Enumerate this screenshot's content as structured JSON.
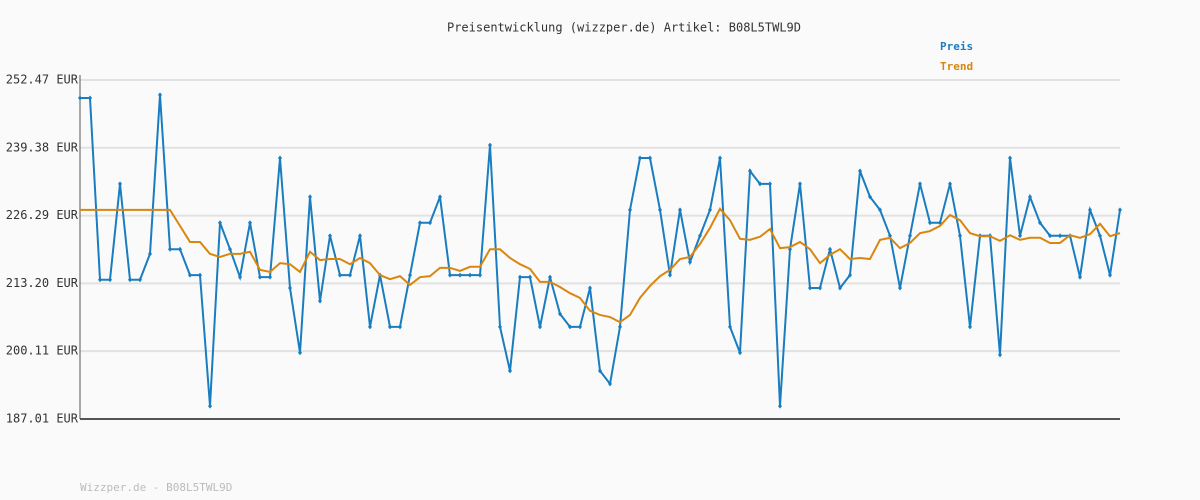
{
  "chart_data": {
    "type": "line",
    "title": "Preisentwicklung (wizzper.de) Artikel: B08L5TWL9D",
    "footer": "Wizzper.de - B08L5TWL9D",
    "ylim": [
      187.01,
      252.47
    ],
    "yticks": [
      {
        "value": 187.01,
        "label": "187.01 EUR"
      },
      {
        "value": 200.11,
        "label": "200.11 EUR"
      },
      {
        "value": 213.2,
        "label": "213.20 EUR"
      },
      {
        "value": 226.29,
        "label": "226.29 EUR"
      },
      {
        "value": 239.38,
        "label": "239.38 EUR"
      },
      {
        "value": 252.47,
        "label": "252.47 EUR"
      }
    ],
    "grid": true,
    "legend": "top-right",
    "series": [
      {
        "name": "Preis",
        "color": "#1a7dbf",
        "values": [
          249.0,
          249.0,
          213.9,
          213.9,
          232.4,
          213.9,
          213.9,
          218.9,
          249.6,
          219.8,
          219.8,
          214.8,
          214.8,
          189.5,
          224.9,
          219.8,
          214.4,
          224.9,
          214.4,
          214.4,
          237.4,
          212.3,
          199.8,
          229.9,
          209.8,
          222.4,
          214.8,
          214.8,
          222.4,
          204.8,
          214.8,
          204.8,
          204.8,
          214.8,
          224.9,
          224.9,
          229.9,
          214.8,
          214.8,
          214.8,
          214.8,
          239.9,
          204.8,
          196.3,
          214.4,
          214.4,
          204.8,
          214.4,
          207.3,
          204.8,
          204.8,
          212.3,
          196.3,
          193.8,
          204.8,
          227.4,
          237.4,
          237.4,
          227.4,
          214.8,
          227.4,
          217.3,
          222.4,
          227.4,
          237.4,
          204.8,
          199.8,
          234.9,
          232.4,
          232.4,
          189.5,
          219.8,
          232.4,
          212.3,
          212.3,
          219.8,
          212.3,
          214.8,
          234.9,
          229.9,
          227.4,
          222.4,
          212.3,
          222.4,
          232.4,
          224.9,
          224.9,
          232.4,
          222.4,
          204.8,
          222.4,
          222.4,
          199.4,
          237.4,
          222.4,
          229.9,
          224.9,
          222.4,
          222.4,
          222.4,
          214.4,
          227.4,
          222.4,
          214.8,
          227.4
        ]
      },
      {
        "name": "Trend",
        "color": "#d9860f",
        "values": [
          227.4,
          227.4,
          227.4,
          227.4,
          227.4,
          227.4,
          227.4,
          227.4,
          227.4,
          227.4,
          224.3,
          221.2,
          221.2,
          218.9,
          218.3,
          218.9,
          218.9,
          219.3,
          215.8,
          215.4,
          217.1,
          216.9,
          215.4,
          219.3,
          217.7,
          217.9,
          217.9,
          216.9,
          218.1,
          217.1,
          214.8,
          214.0,
          214.6,
          212.9,
          214.4,
          214.6,
          216.2,
          216.2,
          215.6,
          216.4,
          216.4,
          219.8,
          219.8,
          218.1,
          216.9,
          216.0,
          213.5,
          213.5,
          212.5,
          211.3,
          210.4,
          207.9,
          207.1,
          206.7,
          205.7,
          207.1,
          210.4,
          212.7,
          214.6,
          215.8,
          217.9,
          218.3,
          220.8,
          223.9,
          227.6,
          225.4,
          221.8,
          221.6,
          222.2,
          223.7,
          220.0,
          220.2,
          221.2,
          219.8,
          217.1,
          218.7,
          219.8,
          217.9,
          218.1,
          217.9,
          221.6,
          222.0,
          220.0,
          221.0,
          222.9,
          223.3,
          224.3,
          226.4,
          225.4,
          222.9,
          222.3,
          222.3,
          221.4,
          222.5,
          221.6,
          222.0,
          222.0,
          221.0,
          221.0,
          222.5,
          222.0,
          222.7,
          224.7,
          222.3,
          222.9
        ]
      }
    ]
  }
}
